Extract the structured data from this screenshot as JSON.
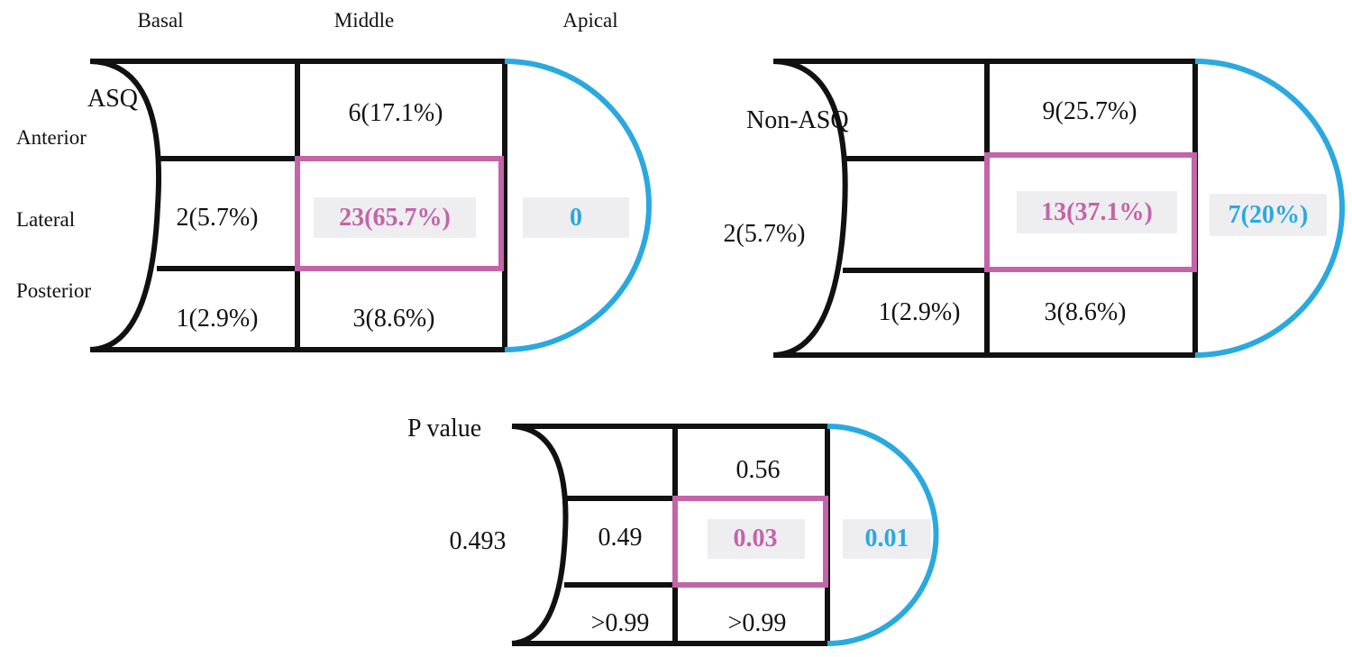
{
  "colors": {
    "outline": "#111111",
    "middle_lateral_highlight": "#c464a9",
    "apical_highlight": "#2aa9e0",
    "value_box_fill": "#eeeef0"
  },
  "column_headers": {
    "basal": "Basal",
    "middle": "Middle",
    "apical": "Apical"
  },
  "row_labels": {
    "anterior": "Anterior",
    "lateral": "Lateral",
    "posterior": "Posterior"
  },
  "asq": {
    "title": "ASQ",
    "middle_anterior": "6(17.1%)",
    "basal_lateral": "2(5.7%)",
    "middle_lateral": "23(65.7%)",
    "apical": "0",
    "basal_posterior": "1(2.9%)",
    "middle_posterior": "3(8.6%)"
  },
  "non_asq": {
    "title": "Non-ASQ",
    "middle_anterior": "9(25.7%)",
    "basal_lateral": "2(5.7%)",
    "middle_lateral": "13(37.1%)",
    "apical": "7(20%)",
    "basal_posterior": "1(2.9%)",
    "middle_posterior": "3(8.6%)"
  },
  "p_value": {
    "title": "P value",
    "middle_anterior": "0.56",
    "basal_left": "0.493",
    "basal_lateral": "0.49",
    "middle_lateral": "0.03",
    "apical": "0.01",
    "basal_posterior": ">0.99",
    "middle_posterior": ">0.99"
  }
}
